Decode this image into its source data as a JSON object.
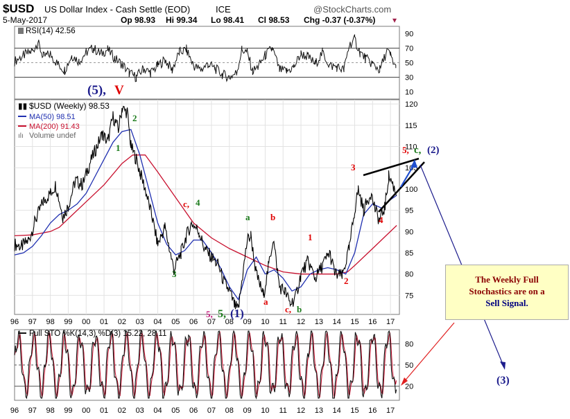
{
  "header": {
    "symbol": "$USD",
    "description": "US Dollar Index - Cash Settle (EOD)",
    "exchange": "ICE",
    "source": "@StockCharts.com",
    "date": "5-May-2017",
    "quote": {
      "open": "Op 98.93",
      "high": "Hi 99.34",
      "low": "Lo 98.41",
      "close": "Cl 98.53",
      "change": "Chg -0.37 (-0.37%)"
    }
  },
  "colors": {
    "price": "#000000",
    "ma50": "#1f2fb0",
    "ma200": "#c8102e",
    "annotation_red": "#e00000",
    "annotation_green": "#1a7a1a",
    "annotation_navy": "#1c1c8c",
    "annotation_magenta": "#c0187a",
    "arrow_red": "#e02020",
    "arrow_blue": "#1c1c8c",
    "note_text": "#8b0000",
    "note_bg": "#ffffc4"
  },
  "chart_data": [
    {
      "type": "line",
      "panel": "RSI",
      "title": "RSI(14) 42.56",
      "y_ticks": [
        90,
        70,
        50,
        30,
        10
      ],
      "ylim": [
        0,
        100
      ],
      "reference_lines": [
        70,
        30
      ],
      "points": [
        [
          1996,
          52
        ],
        [
          1996.5,
          60
        ],
        [
          1997,
          66
        ],
        [
          1997.3,
          78
        ],
        [
          1997.6,
          58
        ],
        [
          1998,
          62
        ],
        [
          1998.4,
          48
        ],
        [
          1998.8,
          40
        ],
        [
          1999.2,
          60
        ],
        [
          1999.6,
          52
        ],
        [
          2000,
          64
        ],
        [
          2000.4,
          70
        ],
        [
          2000.8,
          62
        ],
        [
          2001.2,
          68
        ],
        [
          2001.6,
          56
        ],
        [
          2002,
          48
        ],
        [
          2002.4,
          36
        ],
        [
          2002.8,
          30
        ],
        [
          2003.2,
          42
        ],
        [
          2003.6,
          36
        ],
        [
          2004,
          46
        ],
        [
          2004.4,
          54
        ],
        [
          2004.8,
          40
        ],
        [
          2005.2,
          64
        ],
        [
          2005.6,
          68
        ],
        [
          2006,
          46
        ],
        [
          2006.4,
          40
        ],
        [
          2006.8,
          48
        ],
        [
          2007.2,
          42
        ],
        [
          2007.6,
          34
        ],
        [
          2008,
          30
        ],
        [
          2008.4,
          36
        ],
        [
          2008.7,
          68
        ],
        [
          2009,
          64
        ],
        [
          2009.3,
          38
        ],
        [
          2009.6,
          44
        ],
        [
          2010,
          60
        ],
        [
          2010.4,
          70
        ],
        [
          2010.8,
          40
        ],
        [
          2011.2,
          38
        ],
        [
          2011.6,
          44
        ],
        [
          2012,
          62
        ],
        [
          2012.4,
          58
        ],
        [
          2012.8,
          48
        ],
        [
          2013.2,
          64
        ],
        [
          2013.6,
          46
        ],
        [
          2014,
          44
        ],
        [
          2014.4,
          40
        ],
        [
          2014.7,
          74
        ],
        [
          2015,
          82
        ],
        [
          2015.3,
          64
        ],
        [
          2015.6,
          56
        ],
        [
          2016,
          48
        ],
        [
          2016.4,
          40
        ],
        [
          2016.8,
          66
        ],
        [
          2017,
          60
        ],
        [
          2017.3,
          42.56
        ]
      ]
    },
    {
      "type": "line",
      "panel": "price",
      "title": "$USD (Weekly) 98.53",
      "legend": [
        {
          "name": "$USD (Weekly) 98.53",
          "color": "#000000"
        },
        {
          "name": "MA(50) 98.51",
          "color": "#1f2fb0"
        },
        {
          "name": "MA(200) 91.43",
          "color": "#c8102e"
        },
        {
          "name": "Volume undef",
          "color": "#666666"
        }
      ],
      "legend_position": "top-left",
      "y_ticks": [
        120,
        115,
        110,
        105,
        100,
        95,
        90,
        85,
        80,
        75
      ],
      "ylim": [
        70.5,
        121
      ],
      "x_ticks": [
        "96",
        "97",
        "98",
        "99",
        "00",
        "01",
        "02",
        "03",
        "04",
        "05",
        "06",
        "07",
        "08",
        "09",
        "10",
        "11",
        "12",
        "13",
        "14",
        "15",
        "16",
        "17"
      ],
      "xlim": [
        1996,
        2017.5
      ],
      "grid": true,
      "series": [
        {
          "name": "$USD (Weekly) 98.53",
          "points": [
            [
              1996,
              87
            ],
            [
              1996.4,
              86.5
            ],
            [
              1996.8,
              88
            ],
            [
              1997.2,
              93
            ],
            [
              1997.6,
              97
            ],
            [
              1998,
              99
            ],
            [
              1998.3,
              101
            ],
            [
              1998.7,
              93.5
            ],
            [
              1999,
              96
            ],
            [
              1999.4,
              102
            ],
            [
              1999.8,
              101
            ],
            [
              2000.2,
              106
            ],
            [
              2000.5,
              109
            ],
            [
              2000.9,
              113
            ],
            [
              2001.2,
              111
            ],
            [
              2001.5,
              117
            ],
            [
              2001.8,
              114
            ],
            [
              2002,
              119
            ],
            [
              2002.3,
              118
            ],
            [
              2002.5,
              110
            ],
            [
              2002.8,
              107
            ],
            [
              2003,
              104
            ],
            [
              2003.3,
              100
            ],
            [
              2003.7,
              93
            ],
            [
              2004,
              87
            ],
            [
              2004.4,
              91
            ],
            [
              2004.9,
              81
            ],
            [
              2005.3,
              85
            ],
            [
              2005.6,
              89
            ],
            [
              2005.9,
              92
            ],
            [
              2006.3,
              90
            ],
            [
              2006.6,
              86
            ],
            [
              2007,
              84
            ],
            [
              2007.4,
              82
            ],
            [
              2007.7,
              78
            ],
            [
              2008,
              76
            ],
            [
              2008.3,
              72.5
            ],
            [
              2008.5,
              71.5
            ],
            [
              2008.75,
              80
            ],
            [
              2009,
              88
            ],
            [
              2009.2,
              89
            ],
            [
              2009.5,
              80
            ],
            [
              2009.9,
              75
            ],
            [
              2010.2,
              82
            ],
            [
              2010.45,
              88.5
            ],
            [
              2010.8,
              77
            ],
            [
              2011.1,
              76
            ],
            [
              2011.4,
              73
            ],
            [
              2011.7,
              74.5
            ],
            [
              2012,
              80
            ],
            [
              2012.4,
              83
            ],
            [
              2012.8,
              79
            ],
            [
              2013.2,
              82
            ],
            [
              2013.6,
              85
            ],
            [
              2013.9,
              80
            ],
            [
              2014.3,
              79.5
            ],
            [
              2014.7,
              86
            ],
            [
              2015,
              95
            ],
            [
              2015.2,
              100
            ],
            [
              2015.5,
              95
            ],
            [
              2015.9,
              99
            ],
            [
              2016.2,
              94.5
            ],
            [
              2016.4,
              92.5
            ],
            [
              2016.7,
              96
            ],
            [
              2016.9,
              103
            ],
            [
              2017.05,
              102
            ],
            [
              2017.35,
              98.53
            ]
          ]
        },
        {
          "name": "MA(50) 98.51",
          "points": [
            [
              1996,
              84.5
            ],
            [
              1996.5,
              85
            ],
            [
              1997,
              86.5
            ],
            [
              1997.5,
              89
            ],
            [
              1998,
              92
            ],
            [
              1998.5,
              94
            ],
            [
              1999,
              95
            ],
            [
              1999.5,
              96.5
            ],
            [
              2000,
              99
            ],
            [
              2000.5,
              103
            ],
            [
              2001,
              107
            ],
            [
              2001.5,
              111
            ],
            [
              2002,
              113.5
            ],
            [
              2002.5,
              114
            ],
            [
              2003,
              108
            ],
            [
              2003.5,
              100
            ],
            [
              2004,
              92
            ],
            [
              2004.5,
              87
            ],
            [
              2005,
              84.5
            ],
            [
              2005.5,
              85.5
            ],
            [
              2006,
              88
            ],
            [
              2006.5,
              88
            ],
            [
              2007,
              85
            ],
            [
              2007.5,
              81.5
            ],
            [
              2008,
              77
            ],
            [
              2008.5,
              74
            ],
            [
              2009,
              81
            ],
            [
              2009.5,
              84
            ],
            [
              2010,
              80
            ],
            [
              2010.5,
              81
            ],
            [
              2011,
              79
            ],
            [
              2011.5,
              76
            ],
            [
              2012,
              77
            ],
            [
              2012.5,
              80
            ],
            [
              2013,
              81
            ],
            [
              2013.5,
              81.5
            ],
            [
              2014,
              81
            ],
            [
              2014.5,
              80
            ],
            [
              2015,
              85
            ],
            [
              2015.5,
              94
            ],
            [
              2016,
              96.5
            ],
            [
              2016.5,
              95.5
            ],
            [
              2017,
              97.5
            ],
            [
              2017.35,
              98.51
            ]
          ]
        },
        {
          "name": "MA(200) 91.43",
          "points": [
            [
              1996,
              89
            ],
            [
              1997,
              89.2
            ],
            [
              1998,
              90
            ],
            [
              1998.5,
              91
            ],
            [
              1999,
              93
            ],
            [
              2000,
              97
            ],
            [
              2001,
              101
            ],
            [
              2002,
              106
            ],
            [
              2002.6,
              108
            ],
            [
              2003.3,
              108
            ],
            [
              2004,
              104
            ],
            [
              2005,
              98
            ],
            [
              2006,
              92
            ],
            [
              2007,
              88.5
            ],
            [
              2008,
              86
            ],
            [
              2009,
              84
            ],
            [
              2010,
              82
            ],
            [
              2011,
              80.5
            ],
            [
              2012,
              80
            ],
            [
              2013,
              80
            ],
            [
              2014,
              80
            ],
            [
              2014.6,
              80.5
            ],
            [
              2015,
              82
            ],
            [
              2016,
              86
            ],
            [
              2017.35,
              91.43
            ]
          ]
        }
      ]
    },
    {
      "type": "line",
      "panel": "Full Stochastics",
      "title": "Full STO %K(14,3) %D(3) 15.22, 28.11",
      "legend": [
        {
          "name": "Full STO %K(14,3)",
          "color": "#000000"
        },
        {
          "name": "%D(3) 15.22, 28.11",
          "color": "#c8102e"
        }
      ],
      "y_ticks": [
        80,
        50,
        20
      ],
      "ylim": [
        0,
        100
      ],
      "reference_lines": [
        80,
        50,
        20
      ],
      "x_ticks": [
        "96",
        "97",
        "98",
        "99",
        "00",
        "01",
        "02",
        "03",
        "04",
        "05",
        "06",
        "07",
        "08",
        "09",
        "10",
        "11",
        "12",
        "13",
        "14",
        "15",
        "16",
        "17"
      ],
      "k_last": 15.22,
      "d_last": 28.11
    }
  ],
  "annotations": {
    "wave_5_V_a": "(5),",
    "wave_5_V_b": "V",
    "w2_top": "2",
    "w1": "1",
    "w3": "3",
    "wc4_c": "c,",
    "wc4_4": "4",
    "w5_5_1_a": "5,",
    "w5_5_1_b": "5,",
    "w5_5_1_c": "(1)",
    "wa_green": "a",
    "wa_red": "a",
    "wb_red": "b",
    "wcb_c": "c,",
    "wcb_b": "b",
    "w1_red": "1",
    "w2_red": "2",
    "w3_red": "3",
    "w4_red": "4",
    "w5c2_5": "5,",
    "w5c2_c": "c,",
    "w5c2_2": "(2)",
    "w3_target": "(3)"
  },
  "note": {
    "line1": "The Weekly Full",
    "line2": "Stochastics are on a",
    "line3": "Sell Signal."
  }
}
